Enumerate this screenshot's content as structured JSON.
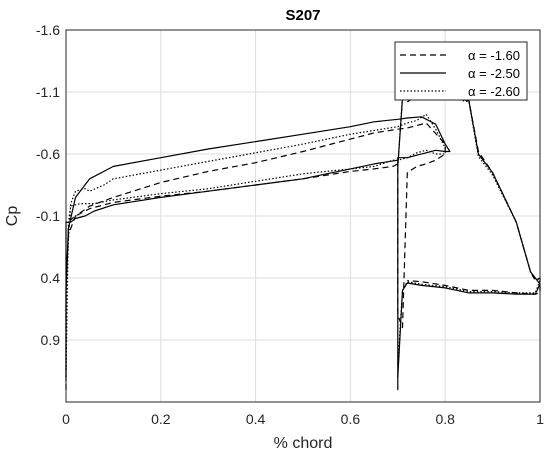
{
  "chart_data": {
    "type": "line",
    "title": "S207",
    "xlabel": "% chord",
    "ylabel": "Cp",
    "xlim": [
      0,
      1
    ],
    "ylim": [
      -1.6,
      1.4
    ],
    "y_reversed": true,
    "grid": true,
    "legend_position": "top-right",
    "x_ticks": [
      "0",
      "0.2",
      "0.4",
      "0.6",
      "0.8",
      "1"
    ],
    "x_tick_values": [
      0,
      0.2,
      0.4,
      0.6,
      0.8,
      1.0
    ],
    "y_ticks": [
      "-1.6",
      "-1.1",
      "-0.6",
      "-0.1",
      "0.4",
      "0.9"
    ],
    "y_tick_values": [
      -1.6,
      -1.1,
      -0.6,
      -0.1,
      0.4,
      0.9
    ],
    "series": [
      {
        "name": "α = -1.60",
        "style": "dashed",
        "x": [
          0.0,
          0.0,
          0.005,
          0.02,
          0.05,
          0.1,
          0.2,
          0.3,
          0.4,
          0.5,
          0.6,
          0.65,
          0.7,
          0.72,
          0.74,
          0.76,
          0.8,
          0.8,
          0.78,
          0.76,
          0.74,
          0.72,
          0.71,
          0.7,
          0.7,
          0.7,
          0.69,
          0.65,
          0.6,
          0.55,
          0.5,
          0.4,
          0.3,
          0.2,
          0.1,
          0.05,
          0.02,
          0.01,
          0.005,
          0.0,
          0.0
        ],
        "y": [
          1.3,
          0.5,
          0.05,
          -0.1,
          -0.18,
          -0.25,
          -0.37,
          -0.46,
          -0.53,
          -0.62,
          -0.72,
          -0.77,
          -0.8,
          -0.81,
          -0.83,
          -0.85,
          -0.68,
          -0.6,
          -0.55,
          -0.52,
          -0.5,
          -0.45,
          0.8,
          0.7,
          -0.45,
          -0.52,
          -0.5,
          -0.48,
          -0.46,
          -0.43,
          -0.4,
          -0.35,
          -0.3,
          -0.26,
          -0.21,
          -0.16,
          -0.1,
          -0.07,
          0.0,
          0.5,
          1.3
        ],
        "x2": [
          0.72,
          0.74,
          0.75,
          0.8,
          0.85,
          0.87,
          0.9,
          0.95,
          0.98,
          0.99,
          1.0,
          1.0,
          0.99,
          0.95,
          0.9,
          0.85,
          0.8,
          0.75,
          0.72
        ],
        "y2": [
          -1.02,
          -1.07,
          -1.07,
          -1.06,
          -1.03,
          -0.62,
          -0.45,
          -0.05,
          0.35,
          0.42,
          0.4,
          0.52,
          0.53,
          0.52,
          0.5,
          0.5,
          0.46,
          0.43,
          0.42
        ]
      },
      {
        "name": "α = -2.50",
        "style": "solid",
        "x": [
          0.0,
          0.0,
          0.005,
          0.02,
          0.05,
          0.1,
          0.2,
          0.3,
          0.4,
          0.5,
          0.6,
          0.65,
          0.7,
          0.72,
          0.75,
          0.78,
          0.8,
          0.81,
          0.8,
          0.78,
          0.76,
          0.74,
          0.72,
          0.7,
          0.7,
          0.7,
          0.65,
          0.6,
          0.55,
          0.5,
          0.4,
          0.3,
          0.2,
          0.1,
          0.06,
          0.04,
          0.02,
          0.01,
          0.0,
          0.0
        ],
        "y": [
          1.2,
          0.5,
          0.0,
          -0.25,
          -0.4,
          -0.5,
          -0.57,
          -0.64,
          -0.7,
          -0.76,
          -0.82,
          -0.86,
          -0.88,
          -0.89,
          -0.9,
          -0.84,
          -0.68,
          -0.62,
          -0.62,
          -0.63,
          -0.61,
          -0.59,
          -0.57,
          -0.57,
          1.3,
          -0.55,
          -0.52,
          -0.48,
          -0.44,
          -0.4,
          -0.35,
          -0.3,
          -0.25,
          -0.19,
          -0.14,
          -0.1,
          -0.08,
          -0.05,
          -0.05,
          1.2
        ],
        "x2": [
          0.7,
          0.71,
          0.72,
          0.75,
          0.8,
          0.85,
          0.87,
          0.9,
          0.95,
          0.98,
          0.99,
          1.0,
          0.99,
          0.95,
          0.9,
          0.85,
          0.8,
          0.75,
          0.72,
          0.71,
          0.7
        ],
        "y2": [
          -0.5,
          -1.05,
          -1.1,
          -1.08,
          -1.06,
          -1.03,
          -0.6,
          -0.45,
          -0.05,
          0.35,
          0.4,
          0.45,
          0.53,
          0.53,
          0.52,
          0.52,
          0.48,
          0.46,
          0.44,
          0.5,
          1.2
        ]
      },
      {
        "name": "α = -2.60",
        "style": "dotted",
        "x": [
          0.0,
          0.0,
          0.005,
          0.01,
          0.02,
          0.04,
          0.05,
          0.08,
          0.1,
          0.2,
          0.3,
          0.4,
          0.5,
          0.6,
          0.7,
          0.72,
          0.74,
          0.76,
          0.78,
          0.8,
          0.8,
          0.78,
          0.76,
          0.74,
          0.72,
          0.7,
          0.69,
          0.65,
          0.6,
          0.5,
          0.4,
          0.3,
          0.2,
          0.1,
          0.06,
          0.03,
          0.01,
          0.005,
          0.0
        ],
        "y": [
          1.2,
          0.6,
          0.1,
          -0.2,
          -0.3,
          -0.32,
          -0.3,
          -0.35,
          -0.4,
          -0.47,
          -0.54,
          -0.61,
          -0.68,
          -0.76,
          -0.82,
          -0.85,
          -0.87,
          -0.92,
          -0.8,
          -0.65,
          -0.6,
          -0.6,
          -0.63,
          -0.61,
          -0.57,
          -0.55,
          -0.55,
          -0.5,
          -0.48,
          -0.44,
          -0.38,
          -0.32,
          -0.28,
          -0.23,
          -0.2,
          -0.2,
          -0.18,
          -0.05,
          1.2
        ],
        "x2": [
          0.7,
          0.71,
          0.72,
          0.75,
          0.8,
          0.85,
          0.87,
          0.9,
          0.95,
          0.98,
          0.99,
          1.0,
          0.99,
          0.95,
          0.9,
          0.85,
          0.8,
          0.75,
          0.72,
          0.71,
          0.7
        ],
        "y2": [
          -0.5,
          -1.07,
          -1.1,
          -1.08,
          -1.06,
          -1.02,
          -0.58,
          -0.43,
          -0.05,
          0.35,
          0.4,
          0.42,
          0.52,
          0.52,
          0.51,
          0.51,
          0.47,
          0.45,
          0.43,
          0.5,
          1.1
        ]
      }
    ]
  }
}
